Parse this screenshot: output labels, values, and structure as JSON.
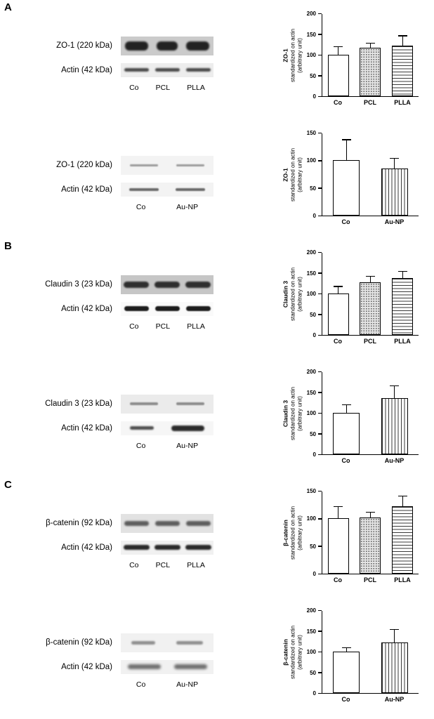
{
  "figure": {
    "panels": [
      {
        "letter": "A",
        "blots": [
          {
            "protein_label": "ZO-1 (220 kDa)",
            "loading_label": "Actin (42 kDa)",
            "lanes": [
              "Co",
              "PCL",
              "PLLA"
            ]
          },
          {
            "protein_label": "ZO-1 (220 kDa)",
            "loading_label": "Actin (42 kDa)",
            "lanes": [
              "Co",
              "Au-NP"
            ]
          }
        ]
      },
      {
        "letter": "B",
        "blots": [
          {
            "protein_label": "Claudin 3 (23 kDa)",
            "loading_label": "Actin (42 kDa)",
            "lanes": [
              "Co",
              "PCL",
              "PLLA"
            ]
          },
          {
            "protein_label": "Claudin 3 (23 kDa)",
            "loading_label": "Actin (42 kDa)",
            "lanes": [
              "Co",
              "Au-NP"
            ]
          }
        ]
      },
      {
        "letter": "C",
        "blots": [
          {
            "protein_label": "β-catenin (92 kDa)",
            "loading_label": "Actin (42 kDa)",
            "lanes": [
              "Co",
              "PCL",
              "PLLA"
            ]
          },
          {
            "protein_label": "β-catenin (92 kDa)",
            "loading_label": "Actin (42 kDa)",
            "lanes": [
              "Co",
              "Au-NP"
            ]
          }
        ]
      }
    ]
  },
  "chart_data": [
    {
      "type": "bar",
      "panel": "A",
      "ylabel_title": "ZO-1",
      "ylabel_sub1": "standardized on actin",
      "ylabel_sub2": "(arbitrary unit)",
      "categories": [
        "Co",
        "PCL",
        "PLLA"
      ],
      "values": [
        100,
        116,
        122
      ],
      "errors": [
        18,
        10,
        22
      ],
      "ylim": [
        0,
        200
      ],
      "yticks": [
        0,
        50,
        100,
        150,
        200
      ],
      "patterns": [
        "open",
        "dots",
        "hlines"
      ],
      "error_bars": "upper SD",
      "grid": false
    },
    {
      "type": "bar",
      "panel": "A",
      "ylabel_title": "ZO-1",
      "ylabel_sub1": "standardized on actin",
      "ylabel_sub2": "(arbitrary unit)",
      "categories": [
        "Co",
        "Au-NP"
      ],
      "values": [
        100,
        84
      ],
      "errors": [
        36,
        18
      ],
      "ylim": [
        0,
        150
      ],
      "yticks": [
        0,
        50,
        100,
        150
      ],
      "patterns": [
        "open",
        "vlines"
      ],
      "error_bars": "upper SD",
      "grid": false
    },
    {
      "type": "bar",
      "panel": "B",
      "ylabel_title": "Claudin 3",
      "ylabel_sub1": "standardized on actin",
      "ylabel_sub2": "(arbitrary unit)",
      "categories": [
        "Co",
        "PCL",
        "PLLA"
      ],
      "values": [
        100,
        127,
        137
      ],
      "errors": [
        15,
        13,
        14
      ],
      "ylim": [
        0,
        200
      ],
      "yticks": [
        0,
        50,
        100,
        150,
        200
      ],
      "patterns": [
        "open",
        "dots",
        "hlines"
      ],
      "error_bars": "upper SD",
      "grid": false
    },
    {
      "type": "bar",
      "panel": "B",
      "ylabel_title": "Claudin 3",
      "ylabel_sub1": "standardized on actin",
      "ylabel_sub2": "(arbitrary unit)",
      "categories": [
        "Co",
        "Au-NP"
      ],
      "values": [
        100,
        135
      ],
      "errors": [
        18,
        28
      ],
      "ylim": [
        0,
        200
      ],
      "yticks": [
        0,
        50,
        100,
        150,
        200
      ],
      "patterns": [
        "open",
        "vlines"
      ],
      "error_bars": "upper SD",
      "grid": false
    },
    {
      "type": "bar",
      "panel": "C",
      "ylabel_title": "β-catenin",
      "ylabel_sub1": "standardized on actin",
      "ylabel_sub2": "(arbitrary unit)",
      "categories": [
        "Co",
        "PCL",
        "PLLA"
      ],
      "values": [
        100,
        101,
        121
      ],
      "errors": [
        20,
        9,
        18
      ],
      "ylim": [
        0,
        150
      ],
      "yticks": [
        0,
        50,
        100,
        150
      ],
      "patterns": [
        "open",
        "dots",
        "hlines"
      ],
      "error_bars": "upper SD",
      "grid": false
    },
    {
      "type": "bar",
      "panel": "C",
      "ylabel_title": "β-catenin",
      "ylabel_sub1": "standardized on actin",
      "ylabel_sub2": "(arbitrary unit)",
      "categories": [
        "Co",
        "Au-NP"
      ],
      "values": [
        100,
        122
      ],
      "errors": [
        7,
        30
      ],
      "ylim": [
        0,
        200
      ],
      "yticks": [
        0,
        50,
        100,
        150,
        200
      ],
      "patterns": [
        "open",
        "vlines"
      ],
      "error_bars": "upper SD",
      "grid": false
    }
  ]
}
